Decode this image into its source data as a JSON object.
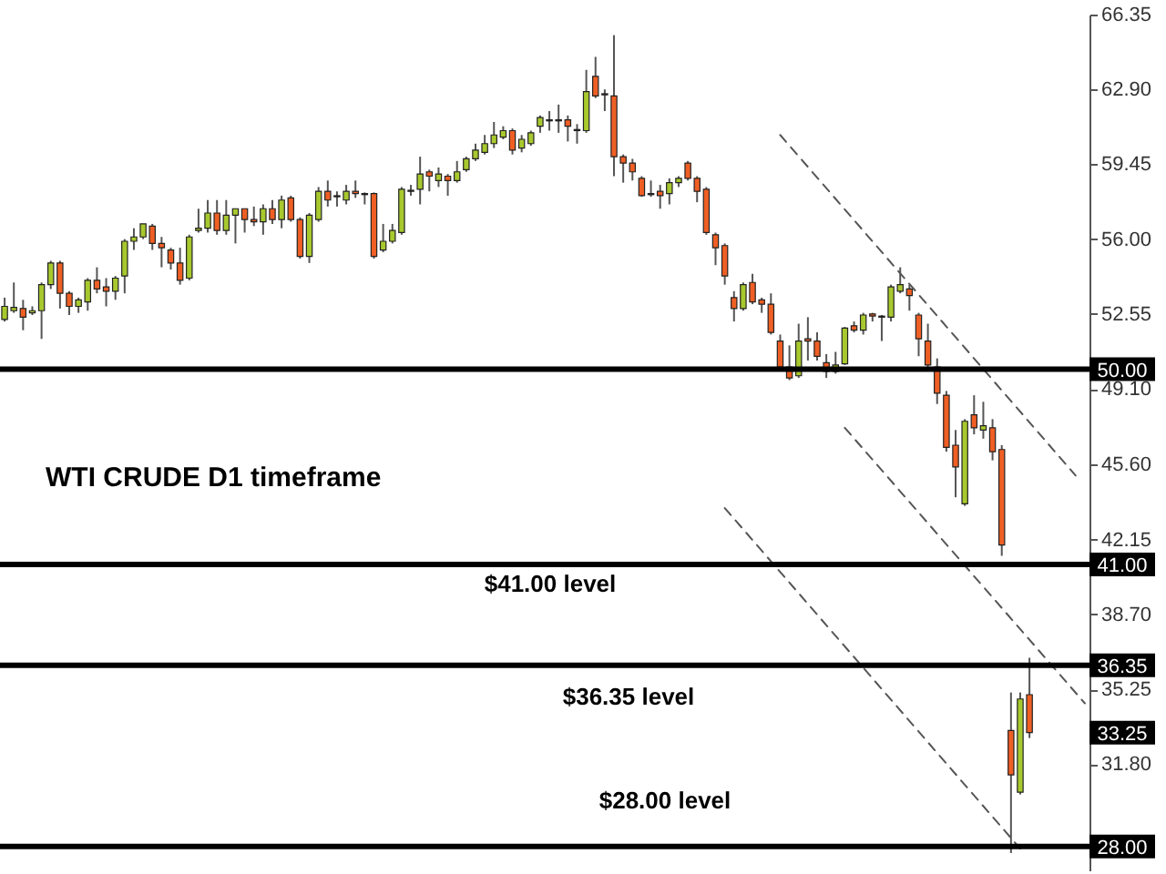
{
  "chart_data": {
    "type": "candlestick",
    "categories": [
      null,
      null,
      null,
      null,
      null,
      null,
      null,
      null,
      null,
      null,
      null,
      null,
      null,
      null,
      null,
      null,
      null,
      null,
      null,
      null,
      null,
      null,
      null,
      null,
      null,
      null,
      null,
      null,
      null,
      null,
      null,
      null,
      null,
      null,
      null,
      null,
      null,
      null,
      null,
      null,
      null,
      null,
      null,
      null,
      null,
      null,
      null,
      null,
      null,
      null,
      null,
      null,
      null,
      null,
      null,
      null,
      null,
      null,
      null,
      null,
      null,
      null,
      null,
      null,
      null,
      null,
      null,
      null,
      null,
      null,
      null,
      null,
      null,
      null,
      null,
      null,
      null,
      null,
      null,
      null,
      null,
      null,
      null,
      null,
      null,
      null,
      null,
      null,
      null,
      null,
      null,
      null,
      null,
      null,
      null,
      null,
      null,
      null,
      null,
      null,
      null,
      null,
      null,
      null,
      null,
      null,
      null,
      null,
      null,
      null,
      null,
      null,
      null,
      null,
      null,
      null,
      null,
      null
    ],
    "ohlc": [
      [
        52.3,
        53.3,
        52.2,
        52.9
      ],
      [
        52.7,
        54.0,
        52.6,
        52.85
      ],
      [
        52.8,
        53.2,
        51.8,
        52.4
      ],
      [
        52.6,
        52.9,
        52.5,
        52.7
      ],
      [
        52.7,
        54.0,
        51.4,
        53.9
      ],
      [
        53.9,
        55.0,
        53.7,
        54.9
      ],
      [
        54.9,
        55.0,
        52.8,
        53.5
      ],
      [
        53.5,
        53.6,
        52.5,
        52.9
      ],
      [
        52.9,
        53.3,
        52.6,
        53.2
      ],
      [
        53.1,
        54.2,
        52.7,
        54.1
      ],
      [
        54.1,
        54.7,
        53.5,
        53.7
      ],
      [
        53.8,
        54.2,
        52.9,
        53.6
      ],
      [
        53.6,
        54.3,
        53.2,
        54.2
      ],
      [
        54.3,
        56.0,
        53.5,
        55.9
      ],
      [
        55.9,
        56.5,
        55.5,
        56.1
      ],
      [
        56.1,
        56.7,
        56.0,
        56.7
      ],
      [
        56.6,
        56.7,
        55.5,
        55.8
      ],
      [
        55.8,
        56.1,
        54.7,
        55.6
      ],
      [
        55.5,
        55.6,
        54.6,
        54.9
      ],
      [
        54.9,
        55.6,
        53.9,
        54.1
      ],
      [
        54.2,
        56.2,
        54.1,
        56.1
      ],
      [
        56.4,
        57.4,
        56.3,
        56.5
      ],
      [
        56.5,
        57.8,
        56.3,
        57.2
      ],
      [
        57.2,
        57.8,
        56.2,
        56.4
      ],
      [
        56.4,
        57.8,
        56.2,
        57.1
      ],
      [
        57.1,
        57.4,
        55.8,
        57.4
      ],
      [
        57.4,
        57.4,
        56.3,
        56.9
      ],
      [
        56.9,
        57.5,
        56.6,
        56.8
      ],
      [
        56.8,
        57.6,
        56.2,
        57.4
      ],
      [
        57.4,
        57.8,
        56.7,
        56.9
      ],
      [
        56.9,
        58.0,
        56.5,
        57.8
      ],
      [
        57.9,
        58.0,
        56.8,
        56.9
      ],
      [
        56.9,
        57.0,
        55.1,
        55.2
      ],
      [
        55.2,
        57.2,
        54.9,
        57.1
      ],
      [
        56.9,
        58.4,
        56.8,
        58.2
      ],
      [
        58.2,
        58.7,
        57.5,
        57.8
      ],
      [
        57.95,
        58.2,
        57.5,
        58.0
      ],
      [
        57.8,
        58.5,
        57.6,
        58.2
      ],
      [
        58.2,
        58.7,
        57.9,
        58.1
      ],
      [
        58.1,
        58.15,
        57.6,
        58.05
      ],
      [
        58.1,
        58.15,
        55.1,
        55.2
      ],
      [
        55.5,
        56.7,
        55.4,
        55.9
      ],
      [
        55.9,
        56.7,
        55.8,
        56.4
      ],
      [
        56.3,
        58.4,
        56.2,
        58.3
      ],
      [
        58.2,
        58.5,
        58.0,
        58.25
      ],
      [
        58.3,
        59.8,
        57.6,
        59.0
      ],
      [
        59.1,
        59.2,
        58.2,
        58.9
      ],
      [
        58.7,
        59.3,
        58.4,
        59.0
      ],
      [
        58.9,
        59.0,
        58.0,
        58.7
      ],
      [
        58.7,
        59.6,
        58.6,
        59.1
      ],
      [
        59.2,
        59.8,
        59.1,
        59.7
      ],
      [
        59.7,
        60.4,
        59.6,
        60.1
      ],
      [
        60.0,
        60.8,
        59.9,
        60.4
      ],
      [
        60.4,
        61.4,
        60.2,
        60.8
      ],
      [
        60.7,
        61.2,
        60.6,
        61.0
      ],
      [
        61.0,
        61.1,
        59.9,
        60.1
      ],
      [
        60.2,
        60.8,
        60.0,
        60.6
      ],
      [
        60.4,
        61.0,
        60.3,
        60.9
      ],
      [
        61.2,
        61.7,
        60.9,
        61.6
      ],
      [
        61.45,
        61.9,
        61.0,
        61.5
      ],
      [
        61.5,
        62.2,
        60.9,
        61.45
      ],
      [
        61.5,
        61.7,
        60.5,
        61.2
      ],
      [
        61.05,
        61.3,
        60.4,
        61.0
      ],
      [
        61.0,
        63.8,
        60.9,
        62.8
      ],
      [
        63.5,
        64.4,
        62.5,
        62.6
      ],
      [
        62.7,
        62.9,
        61.9,
        62.65
      ],
      [
        62.6,
        65.4,
        58.9,
        59.8
      ],
      [
        59.8,
        59.9,
        58.6,
        59.5
      ],
      [
        59.5,
        59.7,
        58.7,
        59.1
      ],
      [
        58.8,
        58.9,
        57.95,
        58.0
      ],
      [
        58.1,
        58.7,
        57.95,
        58.05
      ],
      [
        58.2,
        58.5,
        57.4,
        58.0
      ],
      [
        58.1,
        58.8,
        57.6,
        58.6
      ],
      [
        58.6,
        58.9,
        58.4,
        58.8
      ],
      [
        59.5,
        59.6,
        58.7,
        58.8
      ],
      [
        58.8,
        58.9,
        57.7,
        58.2
      ],
      [
        58.3,
        58.4,
        56.2,
        56.3
      ],
      [
        56.2,
        56.3,
        54.8,
        55.6
      ],
      [
        55.7,
        55.8,
        53.9,
        54.3
      ],
      [
        53.3,
        53.6,
        52.2,
        52.8
      ],
      [
        52.8,
        54.0,
        52.7,
        53.9
      ],
      [
        54.0,
        54.4,
        53.0,
        53.1
      ],
      [
        53.2,
        53.3,
        52.6,
        53.0
      ],
      [
        53.0,
        53.5,
        51.6,
        51.7
      ],
      [
        51.3,
        51.6,
        50.0,
        50.1
      ],
      [
        50.1,
        51.1,
        49.5,
        49.6
      ],
      [
        49.7,
        52.1,
        49.6,
        51.3
      ],
      [
        51.4,
        52.4,
        50.4,
        51.3
      ],
      [
        51.3,
        51.7,
        50.4,
        50.6
      ],
      [
        50.3,
        50.7,
        49.6,
        49.9
      ],
      [
        49.9,
        50.8,
        49.8,
        50.2
      ],
      [
        50.25,
        51.95,
        50.2,
        51.9
      ],
      [
        52.0,
        52.2,
        51.7,
        51.8
      ],
      [
        51.8,
        52.6,
        51.6,
        52.5
      ],
      [
        52.55,
        52.6,
        52.2,
        52.45
      ],
      [
        52.45,
        52.5,
        51.3,
        52.4
      ],
      [
        52.4,
        53.9,
        52.2,
        53.8
      ],
      [
        53.6,
        54.7,
        53.5,
        53.9
      ],
      [
        53.7,
        53.9,
        52.7,
        53.4
      ],
      [
        52.5,
        52.6,
        50.6,
        51.4
      ],
      [
        51.3,
        52.1,
        50.0,
        50.2
      ],
      [
        50.1,
        50.5,
        48.4,
        48.9
      ],
      [
        48.8,
        49.0,
        46.2,
        46.4
      ],
      [
        46.5,
        47.2,
        44.1,
        45.5
      ],
      [
        43.8,
        47.7,
        43.7,
        47.6
      ],
      [
        47.9,
        48.8,
        47.0,
        47.3
      ],
      [
        47.2,
        48.5,
        46.8,
        47.4
      ],
      [
        47.3,
        47.7,
        45.8,
        46.2
      ],
      [
        46.3,
        46.5,
        41.4,
        41.9
      ],
      [
        33.35,
        35.1,
        27.7,
        31.3
      ],
      [
        30.5,
        35.1,
        30.4,
        34.8
      ],
      [
        35.0,
        36.7,
        33.0,
        33.25
      ],
      null,
      null,
      null,
      null,
      null,
      null
    ],
    "colors": [
      "#a8c92e",
      "#a8c92e",
      "#ef5f24",
      "#a8c92e",
      "#a8c92e",
      "#a8c92e",
      "#ef5f24",
      "#ef5f24",
      "#a8c92e",
      "#a8c92e",
      "#ef5f24",
      "#ef5f24",
      "#a8c92e",
      "#a8c92e",
      "#a8c92e",
      "#a8c92e",
      "#ef5f24",
      "#ef5f24",
      "#ef5f24",
      "#ef5f24",
      "#a8c92e",
      "#a8c92e",
      "#a8c92e",
      "#ef5f24",
      "#a8c92e",
      "#a8c92e",
      "#ef5f24",
      "#ef5f24",
      "#a8c92e",
      "#ef5f24",
      "#a8c92e",
      "#ef5f24",
      "#ef5f24",
      "#a8c92e",
      "#a8c92e",
      "#ef5f24",
      "#a8c92e",
      "#a8c92e",
      "#ef5f24",
      "#ef5f24",
      "#ef5f24",
      "#a8c92e",
      "#a8c92e",
      "#a8c92e",
      "#a8c92e",
      "#a8c92e",
      "#ef5f24",
      "#a8c92e",
      "#ef5f24",
      "#a8c92e",
      "#a8c92e",
      "#a8c92e",
      "#a8c92e",
      "#a8c92e",
      "#a8c92e",
      "#ef5f24",
      "#a8c92e",
      "#a8c92e",
      "#a8c92e",
      "#a8c92e",
      "#ef5f24",
      "#ef5f24",
      "#ef5f24",
      "#a8c92e",
      "#ef5f24",
      "#ef5f24",
      "#ef5f24",
      "#ef5f24",
      "#ef5f24",
      "#ef5f24",
      "#ef5f24",
      "#ef5f24",
      "#a8c92e",
      "#a8c92e",
      "#ef5f24",
      "#ef5f24",
      "#ef5f24",
      "#ef5f24",
      "#ef5f24",
      "#ef5f24",
      "#a8c92e",
      "#ef5f24",
      "#ef5f24",
      "#ef5f24",
      "#ef5f24",
      "#ef5f24",
      "#a8c92e",
      "#ef5f24",
      "#ef5f24",
      "#ef5f24",
      "#a8c92e",
      "#a8c92e",
      "#ef5f24",
      "#a8c92e",
      "#ef5f24",
      "#ef5f24",
      "#a8c92e",
      "#a8c92e",
      "#ef5f24",
      "#ef5f24",
      "#ef5f24",
      "#ef5f24",
      "#ef5f24",
      "#ef5f24",
      "#a8c92e",
      "#ef5f24",
      "#a8c92e",
      "#ef5f24",
      "#ef5f24",
      "#ef5f24",
      "#a8c92e",
      "#ef5f24",
      null,
      null,
      null,
      null,
      null,
      null
    ],
    "series": [
      {
        "type": "line",
        "color": "#555555",
        "values": [
          null,
          null,
          null,
          null,
          null,
          null,
          null,
          null,
          null,
          null,
          null,
          null,
          null,
          null,
          null,
          null,
          null,
          null,
          null,
          null,
          null,
          null,
          null,
          null,
          null,
          null,
          null,
          null,
          null,
          null,
          null,
          null,
          null,
          null,
          null,
          null,
          null,
          null,
          null,
          null,
          null,
          null,
          null,
          null,
          null,
          null,
          null,
          null,
          null,
          null,
          null,
          null,
          null,
          null,
          null,
          null,
          null,
          null,
          null,
          null,
          null,
          null,
          null,
          null,
          null,
          null,
          null,
          null,
          null,
          null,
          null,
          null,
          null,
          null,
          null,
          null,
          null,
          null,
          null,
          null,
          null,
          null,
          null,
          null,
          60.8,
          null,
          null,
          null,
          null,
          null,
          null,
          null,
          null,
          null,
          null,
          null,
          null,
          null,
          null,
          null,
          null,
          null,
          null,
          null,
          null,
          null,
          null,
          null,
          null,
          null,
          null,
          null,
          null,
          null,
          null,
          null,
          45.1,
          null
        ]
      },
      {
        "type": "line",
        "color": "#555555",
        "values": [
          null,
          null,
          null,
          null,
          null,
          null,
          null,
          null,
          null,
          null,
          null,
          null,
          null,
          null,
          null,
          null,
          null,
          null,
          null,
          null,
          null,
          null,
          null,
          null,
          null,
          null,
          null,
          null,
          null,
          null,
          null,
          null,
          null,
          null,
          null,
          null,
          null,
          null,
          null,
          null,
          null,
          null,
          null,
          null,
          null,
          null,
          null,
          null,
          null,
          null,
          null,
          null,
          null,
          null,
          null,
          null,
          null,
          null,
          null,
          null,
          null,
          null,
          null,
          null,
          null,
          null,
          null,
          null,
          null,
          null,
          null,
          null,
          null,
          null,
          null,
          null,
          null,
          null,
          null,
          null,
          null,
          null,
          null,
          null,
          null,
          null,
          null,
          null,
          null,
          null,
          null,
          47.3,
          null,
          null,
          null,
          null,
          null,
          null,
          null,
          null,
          null,
          null,
          null,
          null,
          null,
          null,
          null,
          null,
          null,
          null,
          null,
          null,
          null,
          null,
          null,
          null,
          null,
          34.6
        ]
      },
      {
        "type": "line",
        "color": "#555555",
        "values": [
          null,
          null,
          null,
          null,
          null,
          null,
          null,
          null,
          null,
          null,
          null,
          null,
          null,
          null,
          null,
          null,
          null,
          null,
          null,
          null,
          null,
          null,
          null,
          null,
          null,
          null,
          null,
          null,
          null,
          null,
          null,
          null,
          null,
          null,
          null,
          null,
          null,
          null,
          null,
          null,
          null,
          null,
          null,
          null,
          null,
          null,
          null,
          null,
          null,
          null,
          null,
          null,
          null,
          null,
          null,
          null,
          null,
          null,
          null,
          null,
          null,
          null,
          null,
          null,
          null,
          null,
          null,
          null,
          null,
          null,
          null,
          null,
          null,
          null,
          null,
          null,
          null,
          null,
          43.6,
          null,
          null,
          null,
          null,
          null,
          null,
          null,
          null,
          null,
          null,
          null,
          null,
          null,
          null,
          null,
          null,
          null,
          null,
          null,
          null,
          null,
          null,
          null,
          null,
          null,
          null,
          null,
          null,
          null,
          null,
          null,
          27.9,
          null,
          null,
          null,
          null,
          null,
          null,
          null
        ]
      }
    ],
    "line_style": "dashed",
    "ylim": [
      26.9,
      66.35
    ],
    "yticks": [
      {
        "value": 28.35,
        "label": null
      },
      {
        "value": 31.8,
        "label": "31.80"
      },
      {
        "value": 35.25,
        "label": "35.25"
      },
      {
        "value": 38.7,
        "label": "38.70"
      },
      {
        "value": 42.15,
        "label": "42.15"
      },
      {
        "value": 45.6,
        "label": "45.60"
      },
      {
        "value": 49.1,
        "label": "49.10"
      },
      {
        "value": 52.55,
        "label": "52.55"
      },
      {
        "value": 56.0,
        "label": "56.00"
      },
      {
        "value": 59.45,
        "label": "59.45"
      },
      {
        "value": 62.9,
        "label": "62.90"
      },
      {
        "value": 66.35,
        "label": "66.35"
      }
    ],
    "tick_labels": "y",
    "grid": false,
    "ref_lines": [
      {
        "axis": "y",
        "value": 50,
        "label": "50.00",
        "color": "#000000"
      },
      {
        "axis": "y",
        "value": 41,
        "label": "41.00",
        "color": "#000000"
      },
      {
        "axis": "y",
        "value": 36.35,
        "label": "36.35",
        "color": "#000000"
      },
      {
        "axis": "y",
        "value": 28,
        "label": "28.00",
        "color": "#000000"
      }
    ],
    "annotations": [
      "WTI CRUDE D1 timeframe",
      "$41.00 level",
      "$36.35 level",
      "$28.00 level",
      {
        "text": "33.25",
        "y": 33.25
      }
    ]
  }
}
